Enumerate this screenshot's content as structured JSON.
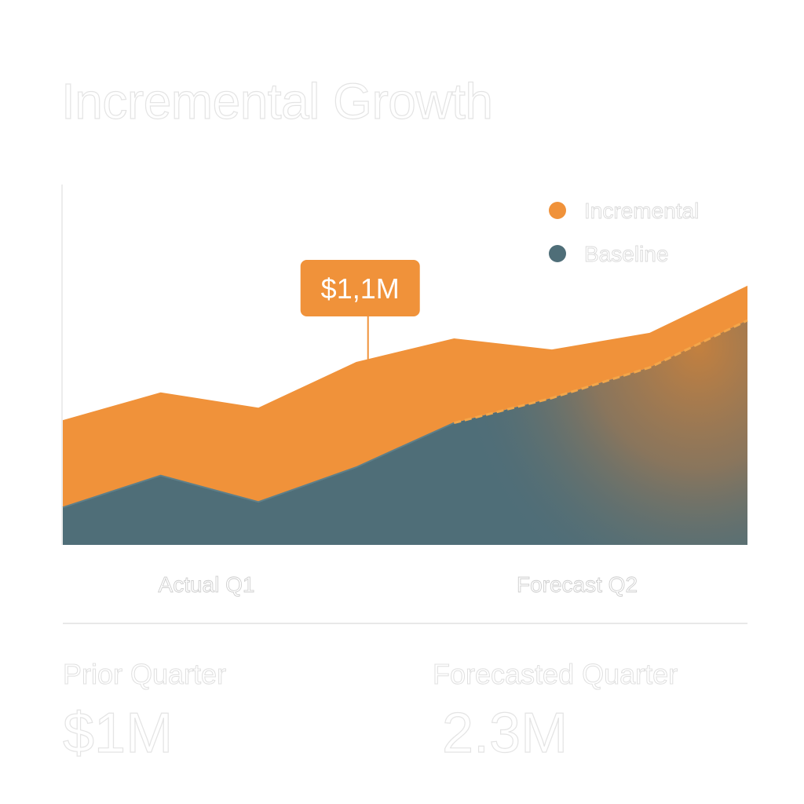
{
  "title": "Incremental Growth",
  "chart_data": {
    "type": "area",
    "title": "Incremental Growth",
    "x": [
      0,
      1,
      2,
      3,
      4,
      5,
      6,
      7
    ],
    "categories": [
      "Actual Q1",
      "Forecast Q2"
    ],
    "legend_position": "top-right",
    "grid": false,
    "ylim": [
      0,
      2.6
    ],
    "series": [
      {
        "name": "Baseline",
        "color": "#4f6e78",
        "values": [
          0.27,
          0.5,
          0.31,
          0.56,
          0.88,
          1.06,
          1.28,
          1.62
        ]
      },
      {
        "name": "Incremental",
        "color": "#f0923a",
        "values": [
          0.63,
          0.6,
          0.68,
          0.76,
          0.61,
          0.35,
          0.25,
          0.25
        ]
      }
    ],
    "annotation": {
      "label": "$1,1M",
      "x": 3,
      "color": "#f0923a"
    }
  },
  "stats": {
    "prior": {
      "label": "Prior Quarter",
      "value": "$1M"
    },
    "forecast": {
      "label": "Forecasted Quarter",
      "value": "2.3M"
    }
  }
}
